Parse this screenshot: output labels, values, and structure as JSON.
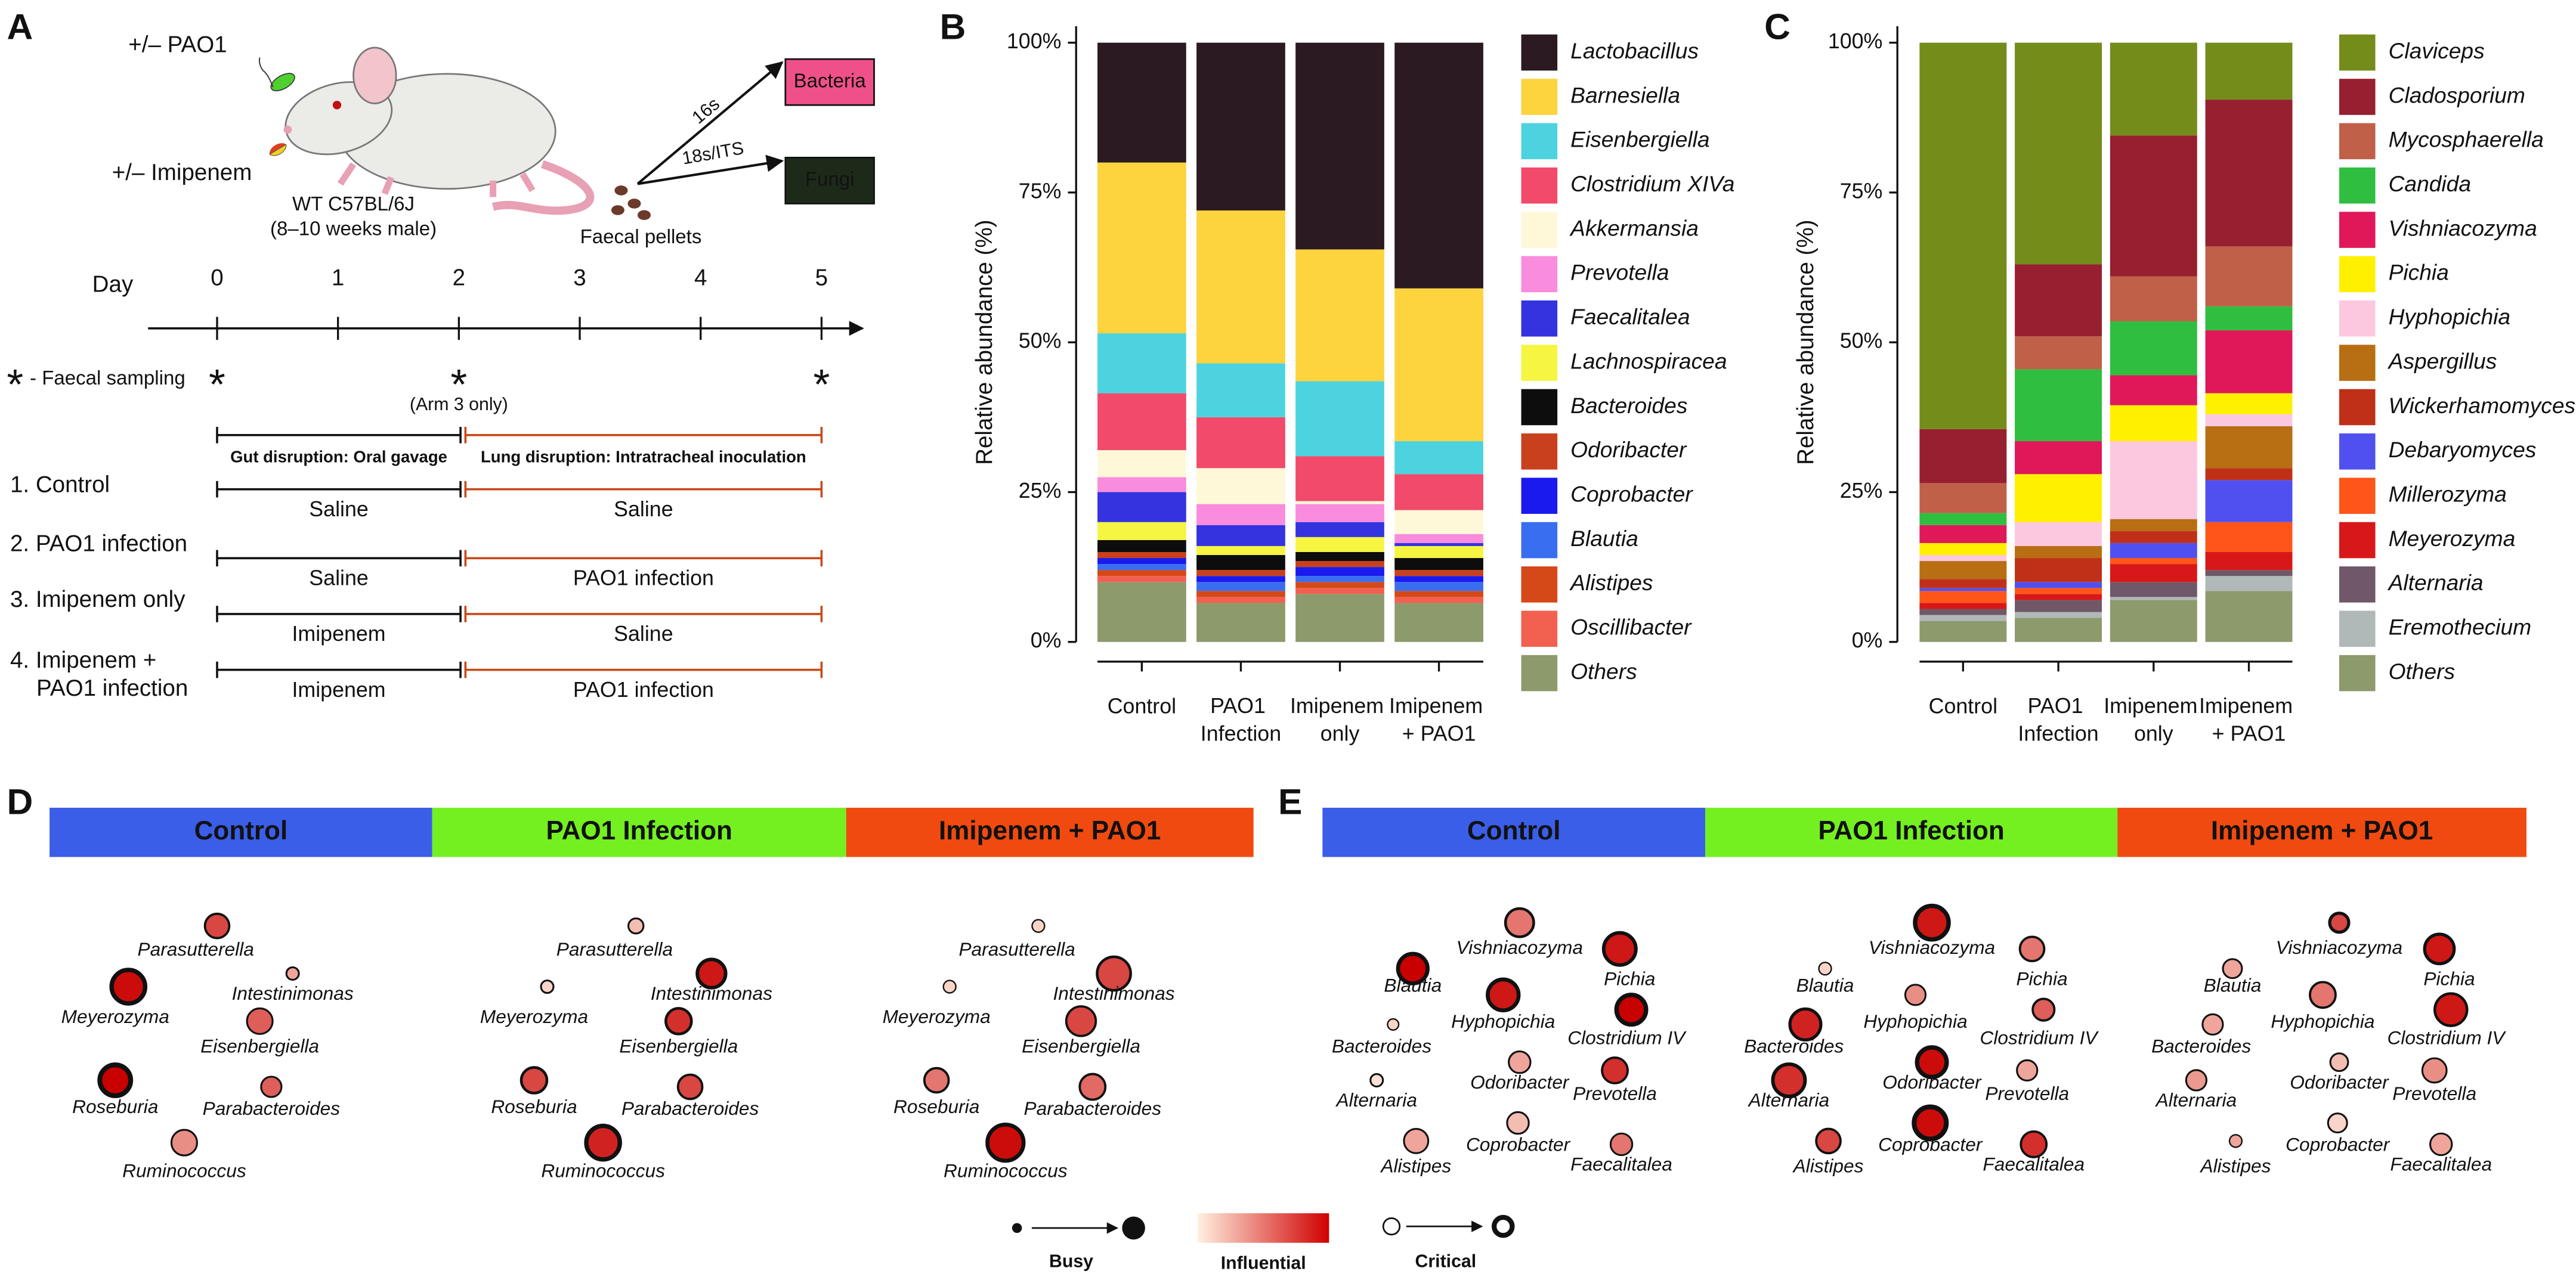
{
  "panel_labels": [
    "A",
    "B",
    "C",
    "D",
    "E"
  ],
  "panel_a": {
    "pao1": "+/– PAO1",
    "imipenem": "+/– Imipenem",
    "mouse": [
      "WT C57BL/6J",
      "(8–10 weeks male)"
    ],
    "pellets": "Faecal pellets",
    "seq_16s": "16s",
    "seq_18s": "18s/ITS",
    "bacteria": "Bacteria",
    "fungi": "Fungi",
    "day_label": "Day",
    "days": [
      0,
      1,
      2,
      3,
      4,
      5
    ],
    "sampling_marker": "*",
    "sampling_text": "- Faecal sampling",
    "arm3_note": "(Arm 3 only)",
    "gut_phase": "Gut disruption: Oral gavage",
    "lung_phase": "Lung disruption: Intratracheal inoculation",
    "arms": [
      {
        "label": [
          "1. Control"
        ],
        "gut": "Saline",
        "lung": "Saline"
      },
      {
        "label": [
          "2. PAO1 infection"
        ],
        "gut": "Saline",
        "lung": "PAO1 infection"
      },
      {
        "label": [
          "3. Imipenem only"
        ],
        "gut": "Imipenem",
        "lung": "Saline"
      },
      {
        "label": [
          "4. Imipenem +",
          "PAO1 infection"
        ],
        "gut": "Imipenem",
        "lung": "PAO1 infection"
      }
    ]
  },
  "chart_data": [
    {
      "type": "stacked_bar",
      "y_label": "Relative abundance (%)",
      "categories": [
        "Control",
        "PAO1 Infection",
        "Imipenem only",
        "Imipenem + PAO1"
      ],
      "ylim": [
        0,
        100
      ],
      "yticks": [
        {
          "value": 0,
          "label": "0%"
        },
        {
          "value": 25,
          "label": "25%"
        },
        {
          "value": 50,
          "label": "50%"
        },
        {
          "value": 75,
          "label": "75%"
        },
        {
          "value": 100,
          "label": "100%"
        }
      ],
      "series": [
        {
          "name": "Lactobacillus",
          "color": "#2b1a22",
          "values": [
            20,
            28,
            34.5,
            41
          ]
        },
        {
          "name": "Barnesiella",
          "color": "#fdd33e",
          "values": [
            28.5,
            25.5,
            22,
            25.5
          ]
        },
        {
          "name": "Eisenbergiella",
          "color": "#4dd3e0",
          "values": [
            10,
            9,
            12.5,
            5.5
          ]
        },
        {
          "name": "Clostridium XIVa",
          "color": "#f24a6a",
          "values": [
            9.5,
            8.5,
            7.5,
            6
          ]
        },
        {
          "name": "Akkermansia",
          "color": "#fef8d8",
          "values": [
            4.5,
            6,
            0.5,
            4
          ]
        },
        {
          "name": "Prevotella",
          "color": "#f98cdc",
          "values": [
            2.5,
            3.5,
            3,
            1.5
          ]
        },
        {
          "name": "Faecalitalea",
          "color": "#3333e0",
          "values": [
            5,
            3.5,
            2.5,
            0.5
          ]
        },
        {
          "name": "Lachnospiracea",
          "color": "#f5f542",
          "values": [
            3,
            1.5,
            2.5,
            2
          ]
        },
        {
          "name": "Bacteroides",
          "color": "#0d0d0d",
          "values": [
            2,
            2.5,
            1.5,
            2
          ]
        },
        {
          "name": "Odoribacter",
          "color": "#c8401c",
          "values": [
            1,
            1,
            1,
            1
          ]
        },
        {
          "name": "Coprobacter",
          "color": "#1a1aee",
          "values": [
            1,
            1,
            1.5,
            1
          ]
        },
        {
          "name": "Blautia",
          "color": "#3a6ef0",
          "values": [
            1,
            1.5,
            1,
            1.5
          ]
        },
        {
          "name": "Alistipes",
          "color": "#d54818",
          "values": [
            1,
            1,
            1,
            1
          ]
        },
        {
          "name": "Oscillibacter",
          "color": "#f2604f",
          "values": [
            1,
            1,
            1,
            1
          ]
        },
        {
          "name": "Others",
          "color": "#8c9a6c",
          "values": [
            10,
            6.5,
            8,
            6.5
          ]
        }
      ]
    },
    {
      "type": "stacked_bar",
      "y_label": "Relative abundance (%)",
      "categories": [
        "Control",
        "PAO1 Infection",
        "Imipenem only",
        "Imipenem + PAO1"
      ],
      "ylim": [
        0,
        100
      ],
      "yticks": [
        {
          "value": 0,
          "label": "0%"
        },
        {
          "value": 25,
          "label": "25%"
        },
        {
          "value": 50,
          "label": "50%"
        },
        {
          "value": 75,
          "label": "75%"
        },
        {
          "value": 100,
          "label": "100%"
        }
      ],
      "series": [
        {
          "name": "Claviceps",
          "color": "#748c1a",
          "values": [
            64.5,
            37,
            15.5,
            9.5
          ]
        },
        {
          "name": "Cladosporium",
          "color": "#962030",
          "values": [
            9,
            12,
            23.5,
            24.5
          ]
        },
        {
          "name": "Mycosphaerella",
          "color": "#c06048",
          "values": [
            5,
            5.5,
            7.5,
            10
          ]
        },
        {
          "name": "Candida",
          "color": "#2fbe40",
          "values": [
            2,
            12,
            9,
            4
          ]
        },
        {
          "name": "Vishniacozyma",
          "color": "#e0185a",
          "values": [
            3,
            5.5,
            5,
            10.5
          ]
        },
        {
          "name": "Pichia",
          "color": "#fff000",
          "values": [
            2,
            8,
            6,
            3.5
          ]
        },
        {
          "name": "Hyphopichia",
          "color": "#fcc8e0",
          "values": [
            1,
            4,
            13,
            2
          ]
        },
        {
          "name": "Aspergillus",
          "color": "#b86e12",
          "values": [
            3,
            2,
            2,
            7
          ]
        },
        {
          "name": "Wickerhamomyces",
          "color": "#c03018",
          "values": [
            1.5,
            4,
            2,
            2
          ]
        },
        {
          "name": "Debaryomyces",
          "color": "#5050f0",
          "values": [
            0.5,
            1,
            2.5,
            7
          ]
        },
        {
          "name": "Millerozyma",
          "color": "#ff5518",
          "values": [
            2,
            1,
            1,
            5
          ]
        },
        {
          "name": "Meyerozyma",
          "color": "#d81818",
          "values": [
            1,
            1,
            3,
            3
          ]
        },
        {
          "name": "Alternaria",
          "color": "#705868",
          "values": [
            1,
            2,
            2.5,
            1
          ]
        },
        {
          "name": "Eremothecium",
          "color": "#b0b8b8",
          "values": [
            1,
            1,
            0.5,
            2.5
          ]
        },
        {
          "name": "Others",
          "color": "#8c9a6c",
          "values": [
            3.5,
            4,
            7,
            8.5
          ]
        }
      ]
    }
  ],
  "panel_d": {
    "taxa": [
      "Parasutterella",
      "Intestinimonas",
      "Meyerozyma",
      "Eisenbergiella",
      "Roseburia",
      "Parabacteroides",
      "Ruminococcus"
    ],
    "groups": [
      {
        "name": "Control",
        "color": "#3a5ee8",
        "nodes": [
          [
            0.55,
            0.7,
            0.3
          ],
          [
            0.1,
            0.3,
            0.2
          ],
          [
            0.9,
            0.95,
            0.8
          ],
          [
            0.6,
            0.6,
            0.2
          ],
          [
            0.8,
            1,
            0.9
          ],
          [
            0.4,
            0.6,
            0.2
          ],
          [
            0.6,
            0.4,
            0.2
          ]
        ]
      },
      {
        "name": "PAO1 Infection",
        "color": "#74f020",
        "nodes": [
          [
            0.2,
            0.2,
            0.2
          ],
          [
            0.7,
            0.9,
            0.6
          ],
          [
            0.1,
            0.1,
            0.2
          ],
          [
            0.6,
            0.8,
            0.4
          ],
          [
            0.6,
            0.7,
            0.4
          ],
          [
            0.55,
            0.7,
            0.3
          ],
          [
            0.9,
            0.85,
            0.8
          ]
        ]
      },
      {
        "name": "Imipenem + PAO1",
        "color": "#f04a10",
        "nodes": [
          [
            0.1,
            0.1,
            0.1
          ],
          [
            0.9,
            0.7,
            0.4
          ],
          [
            0.1,
            0.1,
            0.1
          ],
          [
            0.75,
            0.7,
            0.3
          ],
          [
            0.55,
            0.5,
            0.3
          ],
          [
            0.6,
            0.55,
            0.3
          ],
          [
            1,
            0.95,
            0.7
          ]
        ]
      }
    ]
  },
  "panel_e": {
    "taxa": [
      "Vishniacozyma",
      "Pichia",
      "Blautia",
      "Hyphopichia",
      "Clostridium IV",
      "Bacteroides",
      "Odoribacter",
      "Prevotella",
      "Alternaria",
      "Alistipes",
      "Coprobacter",
      "Faecalitalea"
    ],
    "groups": [
      {
        "name": "Control",
        "color": "#3a5ee8",
        "nodes": [
          [
            0.7,
            0.5,
            0.4
          ],
          [
            0.85,
            0.9,
            0.6
          ],
          [
            0.75,
            1,
            0.7
          ],
          [
            0.8,
            0.9,
            0.7
          ],
          [
            0.75,
            1,
            0.8
          ],
          [
            0.05,
            0.1,
            0.1
          ],
          [
            0.45,
            0.3,
            0.2
          ],
          [
            0.6,
            0.8,
            0.3
          ],
          [
            0.1,
            0.05,
            0.2
          ],
          [
            0.55,
            0.3,
            0.2
          ],
          [
            0.45,
            0.2,
            0.2
          ],
          [
            0.45,
            0.5,
            0.2
          ]
        ]
      },
      {
        "name": "PAO1 Infection",
        "color": "#74f020",
        "nodes": [
          [
            0.9,
            0.9,
            0.8
          ],
          [
            0.55,
            0.5,
            0.3
          ],
          [
            0.1,
            0.1,
            0.1
          ],
          [
            0.4,
            0.4,
            0.2
          ],
          [
            0.45,
            0.6,
            0.3
          ],
          [
            0.8,
            0.85,
            0.5
          ],
          [
            0.75,
            0.95,
            0.8
          ],
          [
            0.4,
            0.3,
            0.2
          ],
          [
            0.85,
            0.8,
            0.6
          ],
          [
            0.55,
            0.7,
            0.3
          ],
          [
            0.85,
            0.95,
            0.9
          ],
          [
            0.6,
            0.8,
            0.3
          ]
        ]
      },
      {
        "name": "Imipenem + PAO1",
        "color": "#f04a10",
        "nodes": [
          [
            0.35,
            0.7,
            0.5
          ],
          [
            0.75,
            0.9,
            0.5
          ],
          [
            0.35,
            0.3,
            0.2
          ],
          [
            0.6,
            0.5,
            0.3
          ],
          [
            0.85,
            0.9,
            0.4
          ],
          [
            0.4,
            0.3,
            0.2
          ],
          [
            0.3,
            0.2,
            0.2
          ],
          [
            0.55,
            0.4,
            0.2
          ],
          [
            0.4,
            0.35,
            0.2
          ],
          [
            0.1,
            0.3,
            0.1
          ],
          [
            0.35,
            0.1,
            0.2
          ],
          [
            0.45,
            0.3,
            0.2
          ]
        ]
      }
    ]
  },
  "network_legend": {
    "busy": "Busy",
    "influential": "Influential",
    "critical": "Critical"
  }
}
